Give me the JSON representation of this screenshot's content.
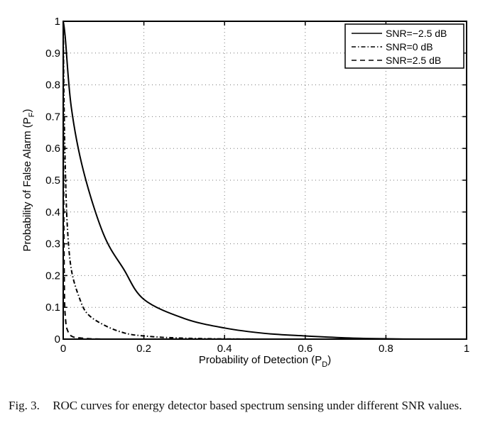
{
  "chart_data": {
    "type": "line",
    "title": "",
    "xlabel": "Probability of Detection (P",
    "xlabel_sub": "D",
    "xlabel_end": ")",
    "ylabel": "Probability of False Alarm (P",
    "ylabel_sub": "F",
    "ylabel_end": ")",
    "xlim": [
      0,
      1
    ],
    "ylim": [
      0,
      1
    ],
    "grid": true,
    "legend_position": "top-right",
    "xticks": [
      0,
      0.2,
      0.4,
      0.6,
      0.8,
      1
    ],
    "xtick_labels": [
      "0",
      "0.2",
      "0.4",
      "0.6",
      "0.8",
      "1"
    ],
    "yticks": [
      0,
      0.1,
      0.2,
      0.3,
      0.4,
      0.5,
      0.6,
      0.7,
      0.8,
      0.9,
      1
    ],
    "ytick_labels": [
      "0",
      "0.1",
      "0.2",
      "0.3",
      "0.4",
      "0.5",
      "0.6",
      "0.7",
      "0.8",
      "0.9",
      "1"
    ],
    "series": [
      {
        "name": "SNR=−2.5 dB",
        "style": "solid",
        "x": [
          0,
          0.005,
          0.02,
          0.05,
          0.1,
          0.15,
          0.2,
          0.3,
          0.4,
          0.5,
          0.6,
          0.7,
          0.8,
          0.9,
          1.0
        ],
        "y": [
          1.0,
          0.95,
          0.73,
          0.53,
          0.33,
          0.22,
          0.125,
          0.065,
          0.035,
          0.018,
          0.01,
          0.004,
          0.001,
          0.0,
          0.0
        ]
      },
      {
        "name": "SNR=0 dB",
        "style": "dashdot",
        "x": [
          0,
          0.002,
          0.005,
          0.01,
          0.02,
          0.04,
          0.06,
          0.1,
          0.15,
          0.2,
          0.3,
          0.5,
          1.0
        ],
        "y": [
          1.0,
          0.75,
          0.55,
          0.36,
          0.22,
          0.13,
          0.08,
          0.045,
          0.02,
          0.01,
          0.003,
          0.0,
          0.0
        ],
        "render_in_front": false
      },
      {
        "name": "SNR=2.5 dB",
        "style": "dashed",
        "x": [
          0,
          0.0005,
          0.001,
          0.003,
          0.006,
          0.01,
          0.02,
          0.04,
          0.1,
          0.3,
          1.0
        ],
        "y": [
          1.0,
          0.8,
          0.5,
          0.15,
          0.06,
          0.03,
          0.01,
          0.004,
          0.0,
          0.0,
          0.0
        ]
      }
    ]
  },
  "caption": {
    "label": "Fig. 3.",
    "text": "ROC curves for energy detector based spectrum sensing under different SNR values."
  }
}
